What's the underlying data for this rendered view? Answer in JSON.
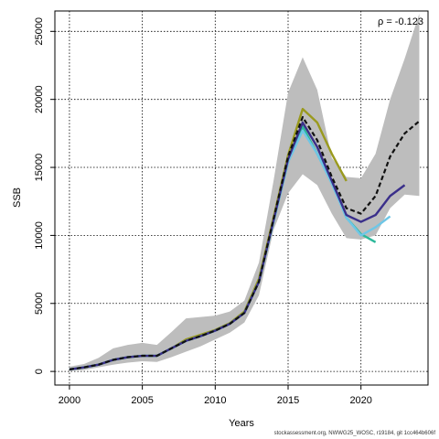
{
  "chart_data": {
    "type": "line",
    "xlabel": "Years",
    "ylabel": "SSB",
    "xlim": [
      1999.0,
      2024.6
    ],
    "ylim": [
      -1000,
      26500
    ],
    "xticks": [
      2000,
      2005,
      2010,
      2015,
      2020
    ],
    "yticks": [
      0,
      5000,
      10000,
      15000,
      20000,
      25000
    ],
    "grid": true,
    "annotation": "ρ = -0.123",
    "band": {
      "x": [
        2000,
        2001,
        2002,
        2003,
        2004,
        2005,
        2006,
        2007,
        2008,
        2009,
        2010,
        2011,
        2012,
        2013,
        2014,
        2015,
        2016,
        2017,
        2018,
        2019,
        2020,
        2021,
        2022,
        2023,
        2024
      ],
      "upper": [
        350,
        550,
        1000,
        1700,
        1950,
        2100,
        1950,
        2900,
        3900,
        4000,
        4100,
        4400,
        5200,
        8000,
        14000,
        20500,
        23100,
        20700,
        15700,
        14300,
        14200,
        16000,
        20000,
        23000,
        26300
      ],
      "lower": [
        50,
        100,
        300,
        500,
        650,
        750,
        700,
        1050,
        1450,
        1850,
        2350,
        2850,
        3600,
        5600,
        10400,
        13100,
        14500,
        13700,
        11600,
        9800,
        9700,
        10000,
        12000,
        13000,
        12900
      ]
    },
    "series": [
      {
        "color": "#9a9a1e",
        "dashed": false,
        "x": [
          2000,
          2001,
          2002,
          2003,
          2004,
          2005,
          2006,
          2007,
          2008,
          2009,
          2010,
          2011,
          2012,
          2013,
          2014,
          2015,
          2016,
          2017,
          2018,
          2019
        ],
        "values": [
          150,
          300,
          500,
          850,
          1050,
          1150,
          1150,
          1700,
          2350,
          2700,
          3050,
          3550,
          4400,
          6800,
          11300,
          15900,
          19300,
          18300,
          16000,
          14000
        ]
      },
      {
        "color": "#2bb89a",
        "dashed": false,
        "x": [
          2000,
          2001,
          2002,
          2003,
          2004,
          2005,
          2006,
          2007,
          2008,
          2009,
          2010,
          2011,
          2012,
          2013,
          2014,
          2015,
          2016,
          2017,
          2018,
          2019,
          2020,
          2021
        ],
        "values": [
          150,
          300,
          500,
          850,
          1050,
          1150,
          1150,
          1700,
          2250,
          2600,
          3000,
          3500,
          4300,
          6600,
          11000,
          15400,
          18000,
          16000,
          13900,
          11300,
          10100,
          9500
        ]
      },
      {
        "color": "#6ec6e6",
        "dashed": false,
        "x": [
          2000,
          2001,
          2002,
          2003,
          2004,
          2005,
          2006,
          2007,
          2008,
          2009,
          2010,
          2011,
          2012,
          2013,
          2014,
          2015,
          2016,
          2017,
          2018,
          2019,
          2020,
          2021,
          2022
        ],
        "values": [
          150,
          300,
          500,
          850,
          1050,
          1150,
          1150,
          1700,
          2250,
          2600,
          3000,
          3500,
          4300,
          6600,
          11000,
          15400,
          17700,
          16000,
          13800,
          11300,
          10000,
          10600,
          11400
        ]
      },
      {
        "color": "#3a2f8a",
        "dashed": false,
        "x": [
          2000,
          2001,
          2002,
          2003,
          2004,
          2005,
          2006,
          2007,
          2008,
          2009,
          2010,
          2011,
          2012,
          2013,
          2014,
          2015,
          2016,
          2017,
          2018,
          2019,
          2020,
          2021,
          2022,
          2023
        ],
        "values": [
          150,
          300,
          500,
          850,
          1050,
          1150,
          1150,
          1700,
          2250,
          2600,
          3000,
          3500,
          4300,
          6600,
          11100,
          15600,
          18300,
          16500,
          14000,
          11500,
          11000,
          11500,
          12900,
          13700
        ]
      },
      {
        "color": "#111111",
        "dashed": true,
        "x": [
          2000,
          2001,
          2002,
          2003,
          2004,
          2005,
          2006,
          2007,
          2008,
          2009,
          2010,
          2011,
          2012,
          2013,
          2014,
          2015,
          2016,
          2017,
          2018,
          2019,
          2020,
          2021,
          2022,
          2023,
          2024
        ],
        "values": [
          150,
          300,
          500,
          850,
          1050,
          1150,
          1150,
          1700,
          2250,
          2600,
          3000,
          3500,
          4300,
          6600,
          11200,
          15800,
          18700,
          17000,
          14300,
          12000,
          11600,
          12900,
          15800,
          17500,
          18400
        ]
      }
    ]
  },
  "footer": "stockassessment.org, NWWG25_WOSC, r19184, git 1cc464b606f"
}
